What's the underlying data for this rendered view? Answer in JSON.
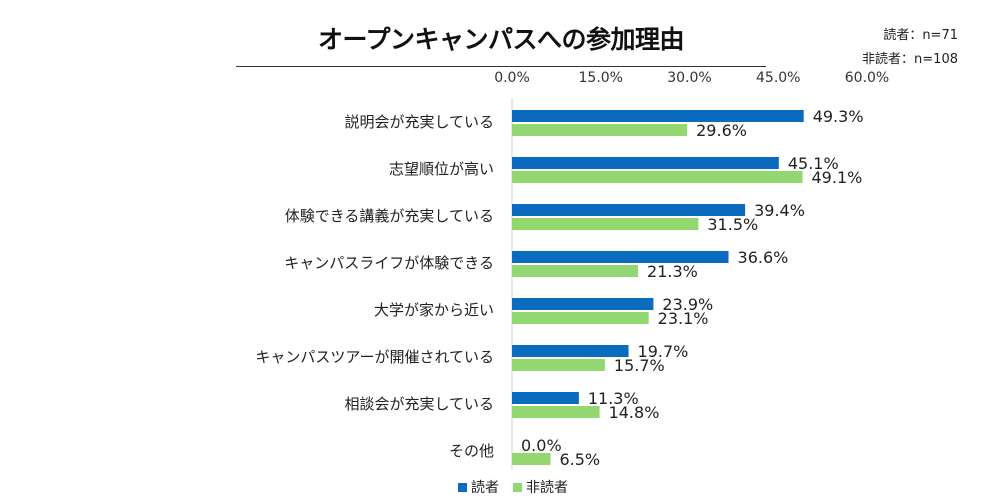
{
  "title": "オープンキャンパスへの参加理由",
  "sample_sizes": {
    "readers": "読者：n=71",
    "non_readers": "非読者：n=108"
  },
  "legend": {
    "readers": "読者",
    "non_readers": "非読者"
  },
  "colors": {
    "readers": "#0A6BBF",
    "non_readers": "#92D770"
  },
  "chart_data": {
    "type": "bar",
    "orientation": "horizontal",
    "title": "オープンキャンパスへの参加理由",
    "categories": [
      "説明会が充実している",
      "志望順位が高い",
      "体験できる講義が充実している",
      "キャンパスライフが体験できる",
      "大学が家から近い",
      "キャンパスツアーが開催されている",
      "相談会が充実している",
      "その他"
    ],
    "series": [
      {
        "name": "読者",
        "values": [
          49.3,
          45.1,
          39.4,
          36.6,
          23.9,
          19.7,
          11.3,
          0.0
        ],
        "labels": [
          "49.3%",
          "45.1%",
          "39.4%",
          "36.6%",
          "23.9%",
          "19.7%",
          "11.3%",
          "0.0%"
        ]
      },
      {
        "name": "非読者",
        "values": [
          29.6,
          49.1,
          31.5,
          21.3,
          23.1,
          15.7,
          14.8,
          6.5
        ],
        "labels": [
          "29.6%",
          "49.1%",
          "31.5%",
          "21.3%",
          "23.1%",
          "15.7%",
          "14.8%",
          "6.5%"
        ]
      }
    ],
    "xlim": [
      0,
      60
    ],
    "x_ticks": [
      "0.0%",
      "15.0%",
      "30.0%",
      "45.0%",
      "60.0%"
    ],
    "x_axis_position": "top",
    "grid": false,
    "legend_position": "bottom"
  }
}
